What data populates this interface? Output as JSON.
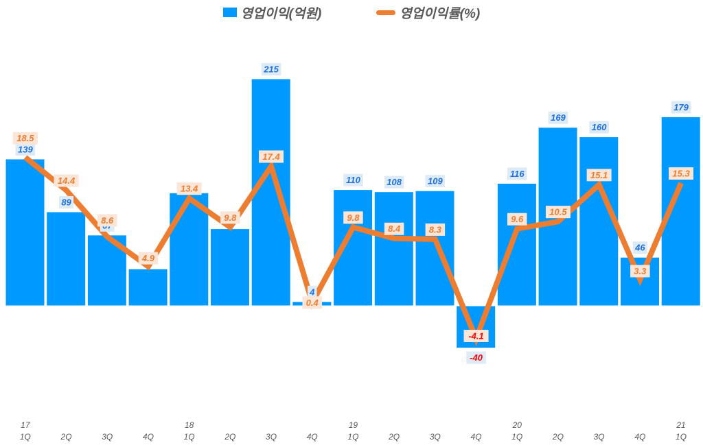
{
  "legend": {
    "bar_label": "영업이익(억원)",
    "line_label": "영업이익률(%)"
  },
  "colors": {
    "bar": "#0099FF",
    "line": "#ED7D31",
    "bar_label_text": "#1F6FE0",
    "bar_label_bg": "#DDEBF7",
    "line_label_text": "#ED7D31",
    "line_label_bg": "#FBE5D6",
    "negative_text": "#FF0000"
  },
  "chart_data": {
    "type": "bar",
    "title": "",
    "xlabel": "",
    "ylabel": "",
    "categories": [
      "17 1Q",
      "2Q",
      "3Q",
      "4Q",
      "18 1Q",
      "2Q",
      "3Q",
      "4Q",
      "19 1Q",
      "2Q",
      "3Q",
      "4Q",
      "20 1Q",
      "2Q",
      "3Q",
      "4Q",
      "21 1Q"
    ],
    "year_labels": [
      "17",
      "",
      "",
      "",
      "18",
      "",
      "",
      "",
      "19",
      "",
      "",
      "",
      "20",
      "",
      "",
      "",
      "21"
    ],
    "quarter_labels": [
      "1Q",
      "2Q",
      "3Q",
      "4Q",
      "1Q",
      "2Q",
      "3Q",
      "4Q",
      "1Q",
      "2Q",
      "3Q",
      "4Q",
      "1Q",
      "2Q",
      "3Q",
      "4Q",
      "1Q"
    ],
    "series": [
      {
        "name": "영업이익(억원)",
        "type": "bar",
        "values": [
          139,
          89,
          67,
          35,
          107,
          73,
          215,
          4,
          110,
          108,
          109,
          -40,
          116,
          169,
          160,
          46,
          179
        ],
        "labels_visible": [
          "139",
          "89",
          "67",
          "",
          "",
          "",
          "215",
          "4",
          "110",
          "108",
          "109",
          "-40",
          "116",
          "169",
          "160",
          "46",
          "179"
        ]
      },
      {
        "name": "영업이익률(%)",
        "type": "line",
        "values": [
          18.5,
          14.4,
          8.6,
          4.9,
          13.4,
          9.8,
          17.4,
          0.4,
          9.8,
          8.4,
          8.3,
          -4.1,
          9.6,
          10.5,
          15.1,
          3.3,
          15.3
        ]
      }
    ],
    "legend_position": "top",
    "grid": false
  }
}
